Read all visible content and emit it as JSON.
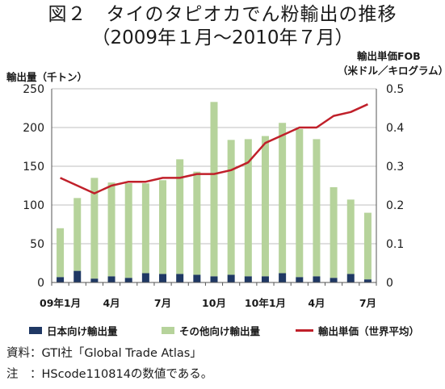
{
  "title": {
    "line1": "図２　タイのタピオカでん粉輸出の推移",
    "line2": "（2009年１月～2010年７月）"
  },
  "left_axis_title": "輸出量（千トン）",
  "right_axis_title_line1": "輸出単価FOB",
  "right_axis_title_line2": "（米ドル／キログラム）",
  "legend": {
    "japan": "日本向け輸出量",
    "other": "その他向け輸出量",
    "price": "輸出単価（世界平均）"
  },
  "notes": {
    "source": "資料：GTI社「Global Trade Atlas」",
    "note": "注　：HScode110814の数値である。"
  },
  "colors": {
    "japan": "#1f3864",
    "other": "#b6d39b",
    "price": "#c0202a",
    "grid": "#bfbfbf"
  },
  "chart_data": {
    "type": "bar",
    "months": [
      "2009-01",
      "2009-02",
      "2009-03",
      "2009-04",
      "2009-05",
      "2009-06",
      "2009-07",
      "2009-08",
      "2009-09",
      "2009-10",
      "2009-11",
      "2009-12",
      "2010-01",
      "2010-02",
      "2010-03",
      "2010-04",
      "2010-05",
      "2010-06",
      "2010-07"
    ],
    "x_tick_labels": [
      "09年1月",
      "",
      "",
      "4月",
      "",
      "",
      "7月",
      "",
      "",
      "10月",
      "",
      "",
      "10年1月",
      "",
      "",
      "4月",
      "",
      "",
      "7月"
    ],
    "stacked": true,
    "series": [
      {
        "name": "日本向け輸出量",
        "type": "bar",
        "axis": "left",
        "values": [
          7,
          15,
          5,
          8,
          6,
          12,
          11,
          11,
          10,
          8,
          10,
          8,
          8,
          12,
          7,
          8,
          6,
          11,
          4
        ]
      },
      {
        "name": "その他向け輸出量",
        "type": "bar",
        "axis": "left",
        "values": [
          63,
          94,
          130,
          121,
          122,
          116,
          121,
          148,
          133,
          225,
          174,
          177,
          181,
          194,
          191,
          177,
          117,
          96,
          86
        ]
      },
      {
        "name": "輸出単価（世界平均）",
        "type": "line",
        "axis": "right",
        "values": [
          0.27,
          0.25,
          0.23,
          0.25,
          0.26,
          0.26,
          0.27,
          0.27,
          0.28,
          0.28,
          0.29,
          0.31,
          0.36,
          0.38,
          0.4,
          0.4,
          0.43,
          0.44,
          0.46
        ]
      }
    ],
    "left_axis": {
      "min": 0,
      "max": 250,
      "ticks": [
        0,
        50,
        100,
        150,
        200,
        250
      ]
    },
    "right_axis": {
      "min": 0,
      "max": 0.5,
      "ticks": [
        "0",
        "0.1",
        "0.2",
        "0.3",
        "0.4",
        "0.5"
      ]
    },
    "grid": true,
    "legend_position": "bottom"
  }
}
